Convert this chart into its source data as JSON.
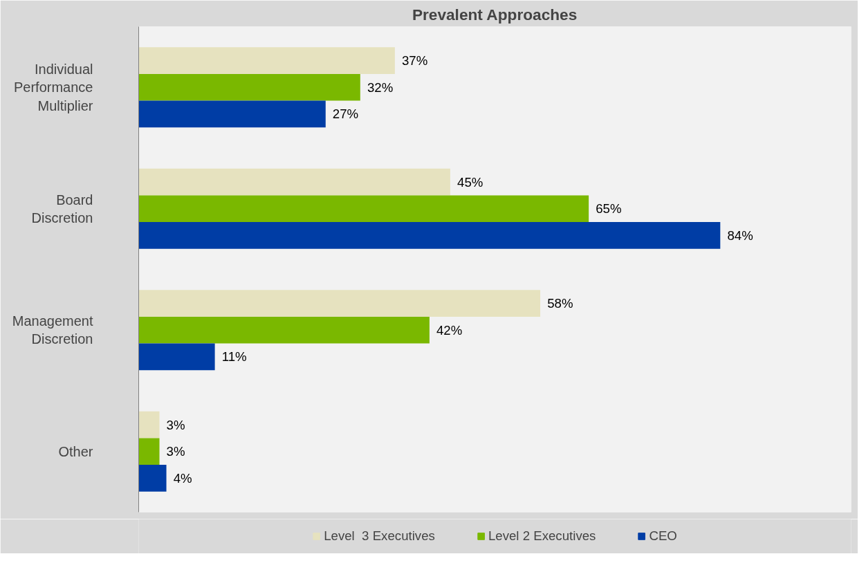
{
  "chart_data": {
    "type": "bar",
    "orientation": "horizontal",
    "title": "Prevalent Approaches",
    "categories": [
      "Individual Performance Multiplier",
      "Board Discretion",
      "Management Discretion",
      "Other"
    ],
    "series": [
      {
        "name": "Level  3 Executives",
        "color": "#e6e2bf",
        "values": [
          37,
          45,
          58,
          3
        ],
        "value_labels": [
          "37%",
          "45%",
          "58%",
          "3%"
        ]
      },
      {
        "name": "Level 2 Executives",
        "color": "#7ab800",
        "values": [
          32,
          65,
          42,
          3
        ],
        "value_labels": [
          "32%",
          "65%",
          "42%",
          "3%"
        ]
      },
      {
        "name": "CEO",
        "color": "#003da5",
        "values": [
          27,
          84,
          11,
          4
        ],
        "value_labels": [
          "27%",
          "84%",
          "11%",
          "4%"
        ]
      }
    ],
    "legend": "bottom",
    "grid": false,
    "tick_labels": "y"
  }
}
